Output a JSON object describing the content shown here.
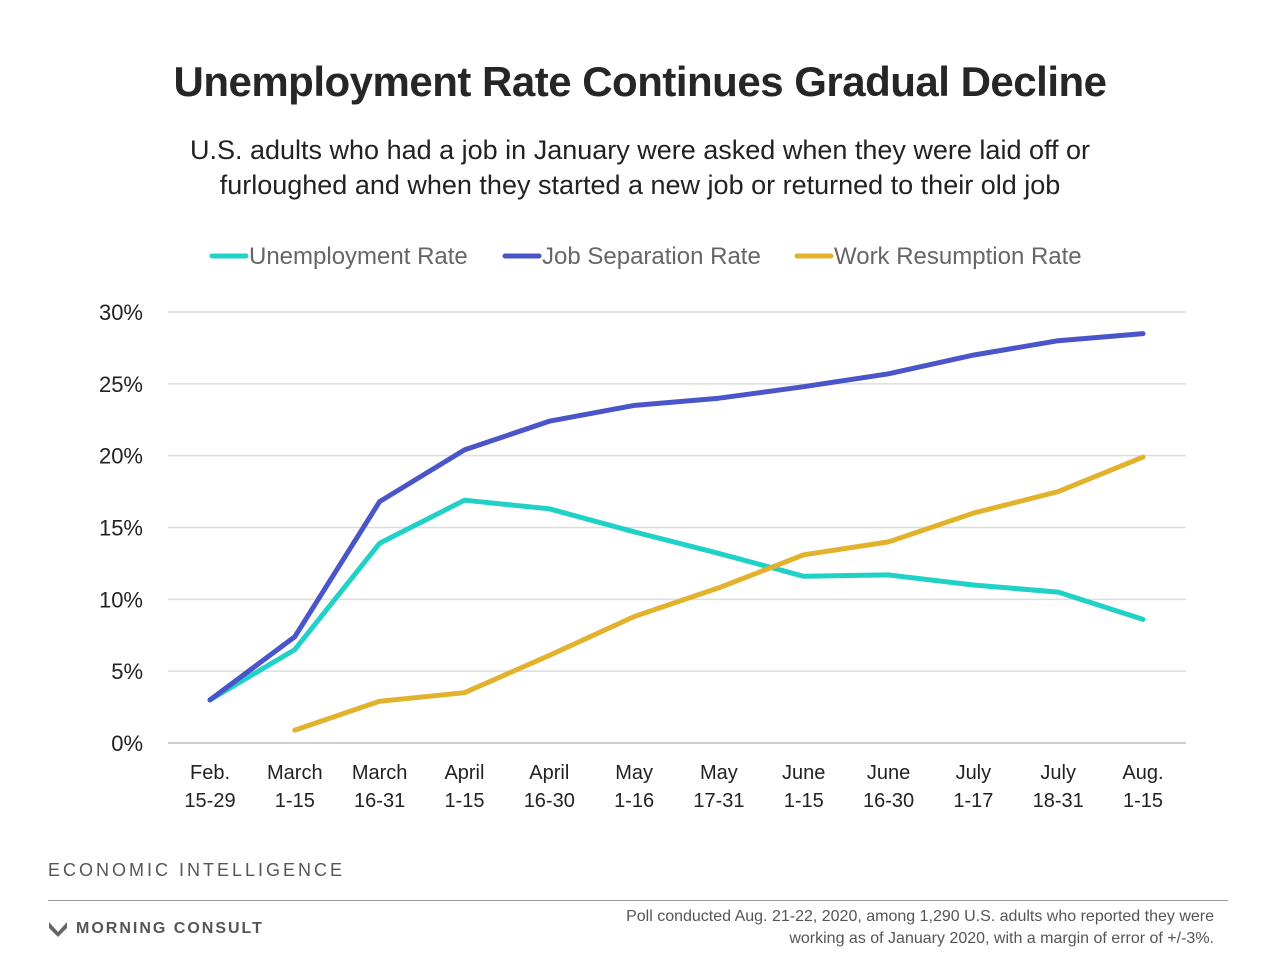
{
  "header": {
    "title": "Unemployment Rate Continues Gradual Decline",
    "subtitle": "U.S. adults who had a job in January were asked when they were laid off or furloughed and when they started a new job or returned to their old job"
  },
  "footer": {
    "section_label": "ECONOMIC INTELLIGENCE",
    "brand": "MORNING CONSULT",
    "note": "Poll conducted Aug. 21-22, 2020, among 1,290 U.S. adults who reported they were working as of January 2020, with a margin of error of +/-3%."
  },
  "chart_data": {
    "type": "line",
    "categories": [
      [
        "Feb.",
        "15-29"
      ],
      [
        "March",
        "1-15"
      ],
      [
        "March",
        "16-31"
      ],
      [
        "April",
        "1-15"
      ],
      [
        "April",
        "16-30"
      ],
      [
        "May",
        "1-16"
      ],
      [
        "May",
        "17-31"
      ],
      [
        "June",
        "1-15"
      ],
      [
        "June",
        "16-30"
      ],
      [
        "July",
        "1-17"
      ],
      [
        "July",
        "18-31"
      ],
      [
        "Aug.",
        "1-15"
      ]
    ],
    "ylim": [
      0,
      30
    ],
    "yticks": [
      "0%",
      "5%",
      "10%",
      "15%",
      "20%",
      "25%",
      "30%"
    ],
    "grid": true,
    "legend_position": "top",
    "series": [
      {
        "name": "Unemployment Rate",
        "color": "#1fd1c6",
        "values": [
          3.0,
          6.5,
          13.9,
          16.9,
          16.3,
          14.7,
          13.2,
          11.6,
          11.7,
          11.0,
          10.5,
          8.6
        ]
      },
      {
        "name": "Job Separation Rate",
        "color": "#4a55c9",
        "values": [
          3.0,
          7.4,
          16.8,
          20.4,
          22.4,
          23.5,
          24.0,
          24.8,
          25.7,
          27.0,
          28.0,
          28.5
        ]
      },
      {
        "name": "Work Resumption Rate",
        "color": "#e2b22d",
        "values": [
          null,
          0.9,
          2.9,
          3.5,
          6.1,
          8.8,
          10.8,
          13.1,
          14.0,
          16.0,
          17.5,
          19.9
        ]
      }
    ]
  }
}
